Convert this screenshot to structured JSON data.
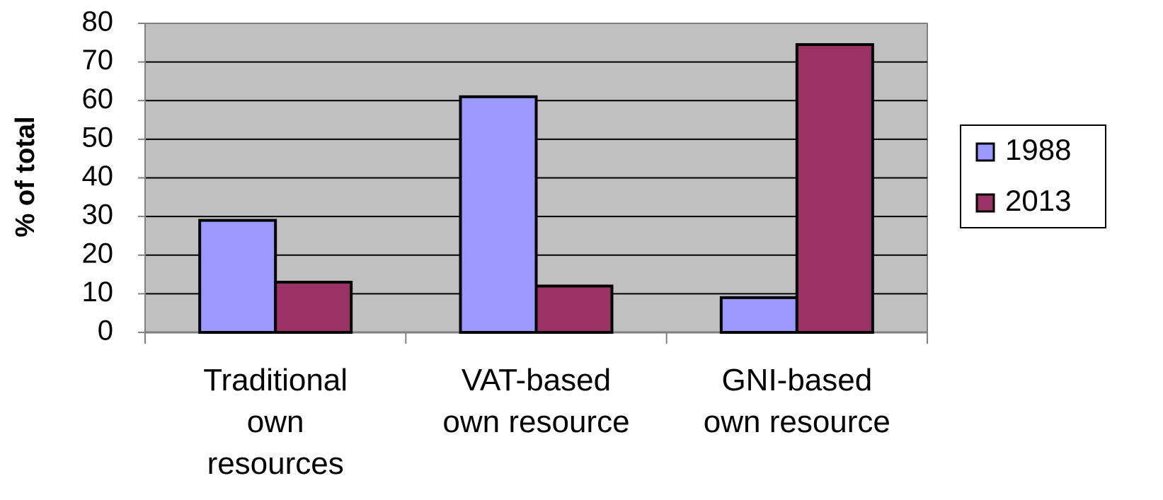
{
  "chart_data": {
    "type": "bar",
    "y_label": "% of total",
    "categories": [
      "Traditional\nown\nresources",
      "VAT-based\nown resource",
      "GNI-based\nown resource"
    ],
    "series": [
      {
        "name": "1988",
        "color": "#9999ff",
        "values": [
          29,
          61,
          9
        ]
      },
      {
        "name": "2013",
        "color": "#993366",
        "values": [
          13,
          12,
          74.5
        ]
      }
    ],
    "ylim": [
      0,
      80
    ],
    "yticks": [
      0,
      10,
      20,
      30,
      40,
      50,
      60,
      70,
      80
    ],
    "grid": true,
    "legend": "right"
  }
}
